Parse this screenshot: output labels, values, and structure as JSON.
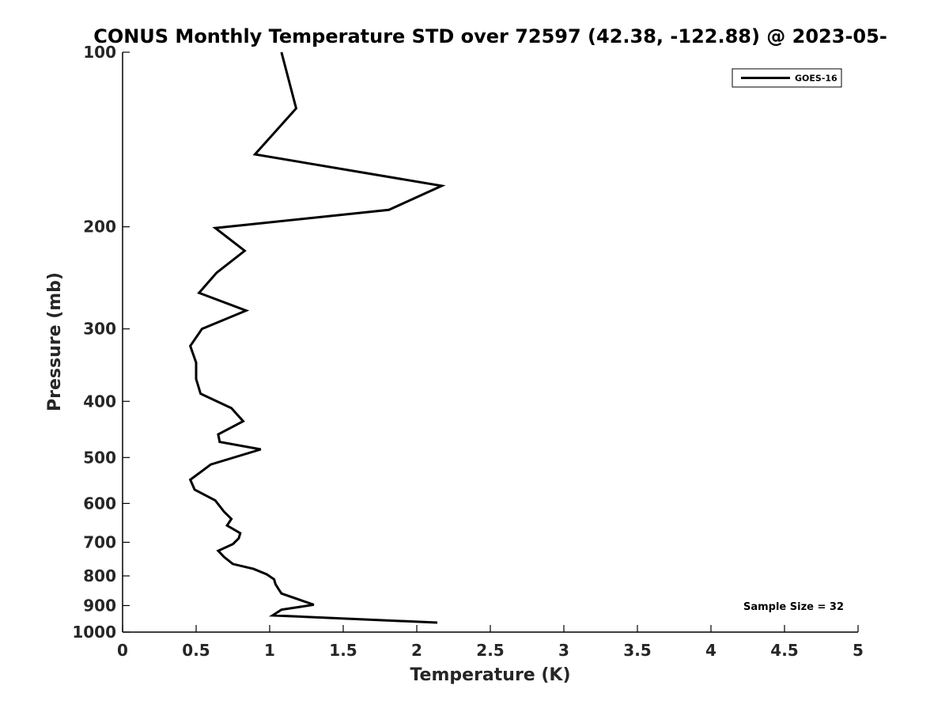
{
  "chart_data": {
    "type": "line",
    "title": "CONUS Monthly Temperature STD over 72597 (42.38, -122.88) @ 2023-05-",
    "xlabel": "Temperature (K)",
    "ylabel": "Pressure (mb)",
    "xlim": [
      0,
      5
    ],
    "ylim": [
      100,
      1000
    ],
    "y_scale": "log",
    "y_reversed": true,
    "x_ticks": [
      "0",
      "0.5",
      "1",
      "1.5",
      "2",
      "2.5",
      "3",
      "3.5",
      "4",
      "4.5",
      "5"
    ],
    "y_ticks": [
      "100",
      "200",
      "300",
      "400",
      "500",
      "600",
      "700",
      "800",
      "900",
      "1000"
    ],
    "grid": false,
    "legend_position": "top-right",
    "annotation": "Sample Size = 32",
    "series": [
      {
        "name": "GOES-16",
        "color": "#000000",
        "points": [
          [
            1.08,
            100
          ],
          [
            1.18,
            125
          ],
          [
            0.9,
            150
          ],
          [
            2.17,
            170
          ],
          [
            1.81,
            187
          ],
          [
            0.63,
            201
          ],
          [
            0.83,
            220
          ],
          [
            0.64,
            240
          ],
          [
            0.52,
            260
          ],
          [
            0.84,
            279
          ],
          [
            0.54,
            300
          ],
          [
            0.46,
            321
          ],
          [
            0.5,
            343
          ],
          [
            0.5,
            366
          ],
          [
            0.53,
            388
          ],
          [
            0.74,
            411
          ],
          [
            0.82,
            433
          ],
          [
            0.65,
            456
          ],
          [
            0.66,
            470
          ],
          [
            0.94,
            484
          ],
          [
            0.6,
            514
          ],
          [
            0.46,
            546
          ],
          [
            0.49,
            568
          ],
          [
            0.63,
            593
          ],
          [
            0.69,
            620
          ],
          [
            0.74,
            638
          ],
          [
            0.71,
            655
          ],
          [
            0.8,
            675
          ],
          [
            0.79,
            689
          ],
          [
            0.75,
            705
          ],
          [
            0.65,
            724
          ],
          [
            0.69,
            742
          ],
          [
            0.75,
            763
          ],
          [
            0.89,
            778
          ],
          [
            0.98,
            795
          ],
          [
            1.03,
            811
          ],
          [
            1.04,
            827
          ],
          [
            1.06,
            843
          ],
          [
            1.08,
            858
          ],
          [
            1.3,
            897
          ],
          [
            1.08,
            915
          ],
          [
            1.02,
            936
          ],
          [
            2.14,
            963
          ]
        ]
      }
    ]
  }
}
